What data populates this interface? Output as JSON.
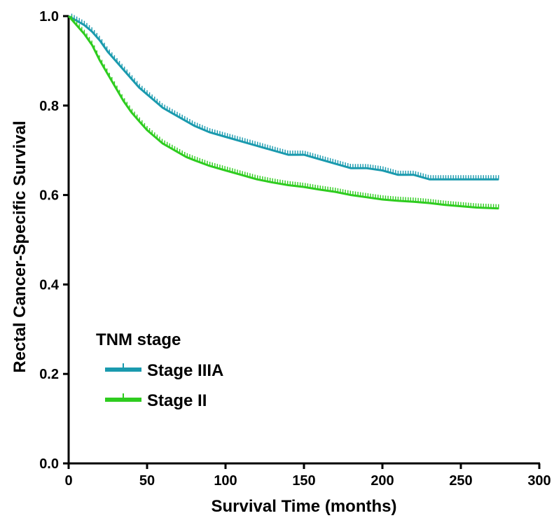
{
  "chart_data": {
    "type": "line",
    "subtype": "kaplan-meier survival curve with censor marks",
    "xlabel": "Survival Time (months)",
    "ylabel": "Rectal Cancer-Specific Survival",
    "xlim": [
      0,
      300
    ],
    "ylim": [
      0,
      1.0
    ],
    "x_ticks": [
      0,
      50,
      100,
      150,
      200,
      250,
      300
    ],
    "y_ticks": [
      0.0,
      0.2,
      0.4,
      0.6,
      0.8,
      1.0
    ],
    "x_tick_labels": [
      "0",
      "50",
      "100",
      "150",
      "200",
      "250",
      "300"
    ],
    "y_tick_labels": [
      "0.0",
      "0.2",
      "0.4",
      "0.6",
      "0.8",
      "1.0"
    ],
    "grid": false,
    "legend": {
      "title": "TNM stage",
      "placement": "bottom-left"
    },
    "series": [
      {
        "name": "Stage IIIA",
        "color": "#1a9aae",
        "x": [
          0,
          5,
          10,
          15,
          20,
          25,
          30,
          35,
          40,
          45,
          50,
          55,
          60,
          65,
          70,
          75,
          80,
          90,
          100,
          110,
          120,
          130,
          140,
          150,
          160,
          170,
          180,
          190,
          200,
          210,
          220,
          230,
          240,
          250,
          260,
          274
        ],
        "y": [
          1.0,
          0.99,
          0.98,
          0.965,
          0.945,
          0.92,
          0.9,
          0.88,
          0.86,
          0.84,
          0.825,
          0.81,
          0.795,
          0.785,
          0.775,
          0.765,
          0.755,
          0.74,
          0.73,
          0.72,
          0.71,
          0.7,
          0.69,
          0.69,
          0.68,
          0.67,
          0.66,
          0.66,
          0.655,
          0.645,
          0.645,
          0.635,
          0.635,
          0.635,
          0.635,
          0.635
        ]
      },
      {
        "name": "Stage II",
        "color": "#2ecc1f",
        "x": [
          0,
          5,
          10,
          15,
          20,
          25,
          30,
          35,
          40,
          45,
          50,
          55,
          60,
          65,
          70,
          75,
          80,
          90,
          100,
          110,
          120,
          130,
          140,
          150,
          160,
          170,
          180,
          190,
          200,
          210,
          220,
          230,
          240,
          250,
          260,
          274
        ],
        "y": [
          1.0,
          0.98,
          0.96,
          0.935,
          0.9,
          0.87,
          0.84,
          0.81,
          0.785,
          0.765,
          0.745,
          0.73,
          0.715,
          0.705,
          0.695,
          0.685,
          0.678,
          0.665,
          0.655,
          0.645,
          0.635,
          0.628,
          0.622,
          0.618,
          0.612,
          0.607,
          0.6,
          0.595,
          0.59,
          0.587,
          0.585,
          0.582,
          0.578,
          0.575,
          0.572,
          0.57
        ]
      }
    ]
  }
}
